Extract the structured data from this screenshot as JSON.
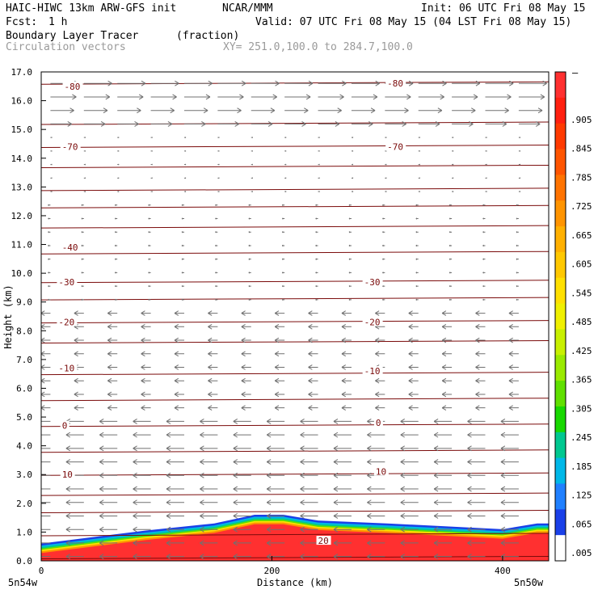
{
  "header": {
    "model": "HAIC-HIWC 13km ARW-GFS init",
    "org": "NCAR/MMM",
    "init": "Init: 06 UTC Fri 08 May 15",
    "fcst_label": "Fcst:",
    "fcst_value": "1 h",
    "valid": "Valid: 07 UTC Fri 08 May 15 (04 LST Fri 08 May 15)",
    "field": "Boundary Layer Tracer",
    "field_units": "(fraction)",
    "vectors": "Circulation vectors",
    "xy": "XY= 251.0,100.0 to 284.7,100.0"
  },
  "colorbar": {
    "top_label": "–",
    "labels": [
      ".905",
      ".845",
      ".785",
      ".725",
      ".665",
      ".605",
      ".545",
      ".485",
      ".425",
      ".365",
      ".305",
      ".245",
      ".185",
      ".125",
      ".065",
      ".005"
    ],
    "colors": [
      "#ff3030",
      "#ff2010",
      "#ff3a00",
      "#ff5500",
      "#ff7300",
      "#ff9400",
      "#ffb000",
      "#ffc800",
      "#ffe000",
      "#f0f000",
      "#c8f000",
      "#9aea00",
      "#60e000",
      "#18d800",
      "#00c890",
      "#00b8e8",
      "#2080ff",
      "#1a40e8",
      "#ffffff"
    ]
  },
  "chart_data": {
    "type": "cross-section",
    "ylabel": "Height (km)",
    "xlabel": "Distance (km)",
    "left_loc": "5n54w",
    "right_loc": "5n50w",
    "xlim": [
      0,
      440
    ],
    "ylim": [
      0,
      17
    ],
    "yticks": [
      "0.0",
      "1.0",
      "2.0",
      "3.0",
      "4.0",
      "5.0",
      "6.0",
      "7.0",
      "8.0",
      "9.0",
      "10.0",
      "11.0",
      "12.0",
      "13.0",
      "14.0",
      "15.0",
      "16.0",
      "17.0"
    ],
    "xticks": [
      "0",
      "200",
      "400"
    ],
    "xtick_values": [
      0,
      200,
      400
    ],
    "isotherm_heights_km": [
      0.1,
      0.9,
      1.7,
      2.3,
      3.0,
      3.8,
      4.7,
      5.6,
      6.5,
      7.6,
      8.3,
      9.1,
      9.7,
      10.7,
      11.6,
      12.3,
      12.9,
      13.7,
      14.4,
      15.2,
      16.6
    ],
    "temperature_labels": [
      {
        "text": "-80",
        "x": 20,
        "y": 16.5
      },
      {
        "text": "-80",
        "x": 300,
        "y": 16.6
      },
      {
        "text": "-70",
        "x": 18,
        "y": 14.4
      },
      {
        "text": "-70",
        "x": 300,
        "y": 14.4
      },
      {
        "text": "-40",
        "x": 18,
        "y": 10.9
      },
      {
        "text": "-30",
        "x": 15,
        "y": 9.7
      },
      {
        "text": "-30",
        "x": 280,
        "y": 9.7
      },
      {
        "text": "-20",
        "x": 15,
        "y": 8.3
      },
      {
        "text": "-20",
        "x": 280,
        "y": 8.3
      },
      {
        "text": "-10",
        "x": 15,
        "y": 6.7
      },
      {
        "text": "-10",
        "x": 280,
        "y": 6.6
      },
      {
        "text": "0",
        "x": 18,
        "y": 4.7
      },
      {
        "text": "0",
        "x": 290,
        "y": 4.8
      },
      {
        "text": "10",
        "x": 18,
        "y": 3.0
      },
      {
        "text": "10",
        "x": 290,
        "y": 3.1
      },
      {
        "text": "20",
        "x": 240,
        "y": 0.7
      }
    ],
    "bl_top_km": [
      [
        0,
        0.6
      ],
      [
        40,
        0.8
      ],
      [
        90,
        1.05
      ],
      [
        150,
        1.3
      ],
      [
        185,
        1.6
      ],
      [
        210,
        1.6
      ],
      [
        240,
        1.4
      ],
      [
        300,
        1.3
      ],
      [
        350,
        1.2
      ],
      [
        400,
        1.1
      ],
      [
        430,
        1.3
      ],
      [
        440,
        1.3
      ]
    ]
  }
}
